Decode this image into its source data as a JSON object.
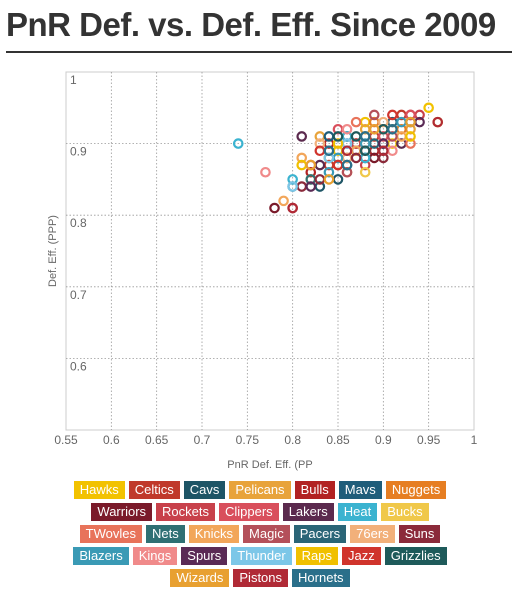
{
  "title": "PnR Def. vs. Def. Eff. Since 2009",
  "chart_data": {
    "type": "scatter",
    "xlabel": "PnR Def. Eff. (PP",
    "ylabel": "Def. Eff. (PPP)",
    "xlim": [
      0.55,
      1
    ],
    "ylim": [
      0.5,
      1
    ],
    "xticks": [
      "0.55",
      "0.6",
      "0.65",
      "0.7",
      "0.75",
      "0.8",
      "0.85",
      "0.9",
      "0.95",
      "1"
    ],
    "yticks": [
      "0.6",
      "0.7",
      "0.8",
      "0.9",
      "1"
    ],
    "grid": true,
    "legend_position": "bottom",
    "series": [
      {
        "name": "Hawks",
        "color": "#f2c200",
        "points": [
          [
            0.88,
            0.93
          ],
          [
            0.95,
            0.95
          ],
          [
            0.91,
            0.9
          ],
          [
            0.85,
            0.89
          ]
        ]
      },
      {
        "name": "Celtics",
        "color": "#c0392b",
        "points": [
          [
            0.86,
            0.88
          ],
          [
            0.89,
            0.91
          ],
          [
            0.92,
            0.94
          ],
          [
            0.84,
            0.87
          ]
        ]
      },
      {
        "name": "Cavs",
        "color": "#1e5566",
        "points": [
          [
            0.85,
            0.85
          ],
          [
            0.87,
            0.89
          ],
          [
            0.9,
            0.9
          ],
          [
            0.83,
            0.84
          ]
        ]
      },
      {
        "name": "Pelicans",
        "color": "#e8a33a",
        "points": [
          [
            0.83,
            0.91
          ],
          [
            0.88,
            0.92
          ],
          [
            0.93,
            0.92
          ],
          [
            0.86,
            0.86
          ]
        ]
      },
      {
        "name": "Bulls",
        "color": "#b22222",
        "points": [
          [
            0.84,
            0.9
          ],
          [
            0.82,
            0.86
          ],
          [
            0.87,
            0.9
          ],
          [
            0.89,
            0.89
          ]
        ]
      },
      {
        "name": "Mavs",
        "color": "#1f5d7a",
        "points": [
          [
            0.84,
            0.91
          ],
          [
            0.88,
            0.88
          ],
          [
            0.91,
            0.93
          ],
          [
            0.86,
            0.89
          ]
        ]
      },
      {
        "name": "Nuggets",
        "color": "#e67e22",
        "points": [
          [
            0.87,
            0.9
          ],
          [
            0.92,
            0.92
          ],
          [
            0.89,
            0.93
          ],
          [
            0.85,
            0.87
          ]
        ]
      },
      {
        "name": "Warriors",
        "color": "#7a1a2a",
        "points": [
          [
            0.78,
            0.81
          ],
          [
            0.84,
            0.88
          ],
          [
            0.89,
            0.88
          ],
          [
            0.86,
            0.91
          ]
        ]
      },
      {
        "name": "Rockets",
        "color": "#c8414b",
        "points": [
          [
            0.93,
            0.94
          ],
          [
            0.88,
            0.87
          ],
          [
            0.94,
            0.94
          ],
          [
            0.87,
            0.9
          ]
        ]
      },
      {
        "name": "Clippers",
        "color": "#d94f5c",
        "points": [
          [
            0.85,
            0.92
          ],
          [
            0.9,
            0.91
          ],
          [
            0.93,
            0.94
          ],
          [
            0.82,
            0.87
          ]
        ]
      },
      {
        "name": "Lakers",
        "color": "#5b2a4e",
        "points": [
          [
            0.81,
            0.91
          ],
          [
            0.87,
            0.89
          ],
          [
            0.92,
            0.9
          ],
          [
            0.83,
            0.87
          ]
        ]
      },
      {
        "name": "Heat",
        "color": "#3bb3d0",
        "points": [
          [
            0.74,
            0.9
          ],
          [
            0.8,
            0.85
          ],
          [
            0.86,
            0.91
          ],
          [
            0.88,
            0.88
          ]
        ]
      },
      {
        "name": "Bucks",
        "color": "#f0c84a",
        "points": [
          [
            0.88,
            0.86
          ],
          [
            0.82,
            0.85
          ],
          [
            0.91,
            0.92
          ],
          [
            0.84,
            0.88
          ]
        ]
      },
      {
        "name": "TWovles",
        "color": "#e8735a",
        "points": [
          [
            0.87,
            0.93
          ],
          [
            0.93,
            0.9
          ],
          [
            0.85,
            0.9
          ],
          [
            0.9,
            0.92
          ]
        ]
      },
      {
        "name": "Nets",
        "color": "#2f6f73",
        "points": [
          [
            0.82,
            0.85
          ],
          [
            0.86,
            0.87
          ],
          [
            0.9,
            0.89
          ],
          [
            0.88,
            0.91
          ]
        ]
      },
      {
        "name": "Knicks",
        "color": "#f2a65a",
        "points": [
          [
            0.79,
            0.82
          ],
          [
            0.81,
            0.88
          ],
          [
            0.87,
            0.89
          ],
          [
            0.92,
            0.91
          ]
        ]
      },
      {
        "name": "Magic",
        "color": "#b4505a",
        "points": [
          [
            0.8,
            0.81
          ],
          [
            0.86,
            0.86
          ],
          [
            0.89,
            0.94
          ],
          [
            0.91,
            0.91
          ]
        ]
      },
      {
        "name": "Pacers",
        "color": "#2a6577",
        "points": [
          [
            0.84,
            0.89
          ],
          [
            0.89,
            0.9
          ],
          [
            0.93,
            0.93
          ],
          [
            0.8,
            0.84
          ]
        ]
      },
      {
        "name": "76ers",
        "color": "#f2b07a",
        "points": [
          [
            0.83,
            0.9
          ],
          [
            0.88,
            0.91
          ],
          [
            0.9,
            0.93
          ],
          [
            0.86,
            0.88
          ]
        ]
      },
      {
        "name": "Suns",
        "color": "#8b2a3a",
        "points": [
          [
            0.83,
            0.85
          ],
          [
            0.87,
            0.88
          ],
          [
            0.9,
            0.88
          ],
          [
            0.81,
            0.84
          ]
        ]
      },
      {
        "name": "Blazers",
        "color": "#3a9ab5",
        "points": [
          [
            0.85,
            0.88
          ],
          [
            0.88,
            0.9
          ],
          [
            0.92,
            0.93
          ],
          [
            0.84,
            0.86
          ]
        ]
      },
      {
        "name": "Kings",
        "color": "#f08a8a",
        "points": [
          [
            0.77,
            0.86
          ],
          [
            0.86,
            0.92
          ],
          [
            0.91,
            0.89
          ],
          [
            0.89,
            0.92
          ]
        ]
      },
      {
        "name": "Spurs",
        "color": "#5a2a55",
        "points": [
          [
            0.86,
            0.9
          ],
          [
            0.9,
            0.9
          ],
          [
            0.94,
            0.93
          ],
          [
            0.82,
            0.84
          ]
        ]
      },
      {
        "name": "Thunder",
        "color": "#7cc7e8",
        "points": [
          [
            0.8,
            0.84
          ],
          [
            0.84,
            0.88
          ],
          [
            0.88,
            0.89
          ],
          [
            0.86,
            0.9
          ]
        ]
      },
      {
        "name": "Raps",
        "color": "#f0c000",
        "points": [
          [
            0.81,
            0.87
          ],
          [
            0.85,
            0.9
          ],
          [
            0.93,
            0.91
          ],
          [
            0.96,
            0.93
          ]
        ]
      },
      {
        "name": "Jazz",
        "color": "#d0342c",
        "points": [
          [
            0.85,
            0.87
          ],
          [
            0.88,
            0.89
          ],
          [
            0.91,
            0.94
          ],
          [
            0.83,
            0.89
          ]
        ]
      },
      {
        "name": "Grizzlies",
        "color": "#1e5a5a",
        "points": [
          [
            0.85,
            0.91
          ],
          [
            0.87,
            0.91
          ],
          [
            0.9,
            0.92
          ],
          [
            0.88,
            0.89
          ]
        ]
      },
      {
        "name": "Wizards",
        "color": "#e8a030",
        "points": [
          [
            0.82,
            0.87
          ],
          [
            0.84,
            0.85
          ],
          [
            0.89,
            0.92
          ],
          [
            0.93,
            0.93
          ]
        ]
      },
      {
        "name": "Pistons",
        "color": "#b02a36",
        "points": [
          [
            0.8,
            0.81
          ],
          [
            0.86,
            0.89
          ],
          [
            0.9,
            0.89
          ],
          [
            0.96,
            0.93
          ]
        ]
      },
      {
        "name": "Hornets",
        "color": "#2a6f8a",
        "points": [
          [
            0.84,
            0.89
          ],
          [
            0.86,
            0.87
          ],
          [
            0.88,
            0.91
          ],
          [
            0.91,
            0.92
          ]
        ]
      }
    ]
  }
}
